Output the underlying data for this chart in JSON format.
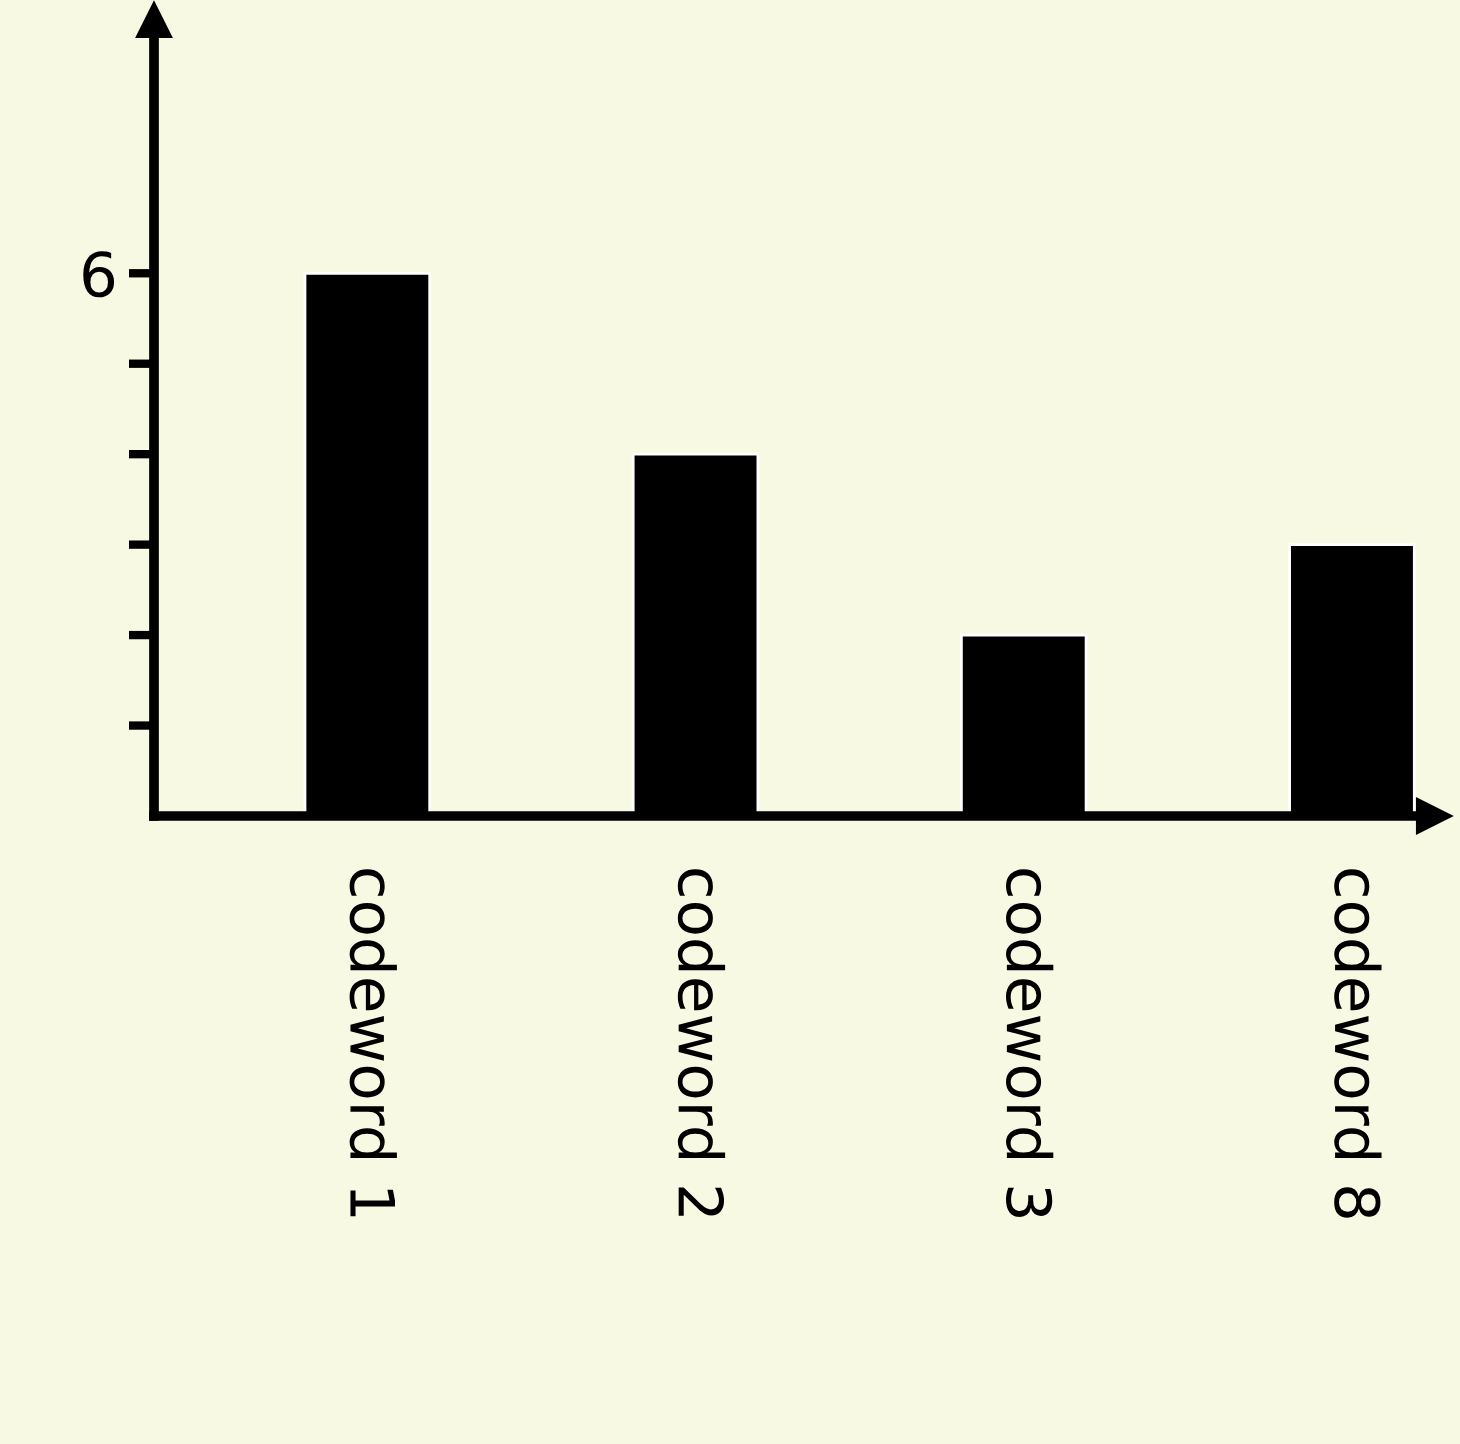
{
  "chart_data": {
    "type": "bar",
    "categories": [
      "codeword 1",
      "codeword 2",
      "codeword 3",
      "codeword 8"
    ],
    "values": [
      6,
      4,
      2,
      3
    ],
    "color": "#000000",
    "ylim": [
      0,
      8.8
    ],
    "yticks": [
      {
        "value": 1,
        "label": null
      },
      {
        "value": 2,
        "label": null
      },
      {
        "value": 3,
        "label": null
      },
      {
        "value": 4,
        "label": null
      },
      {
        "value": 5,
        "label": null
      },
      6
    ],
    "grid": false
  }
}
